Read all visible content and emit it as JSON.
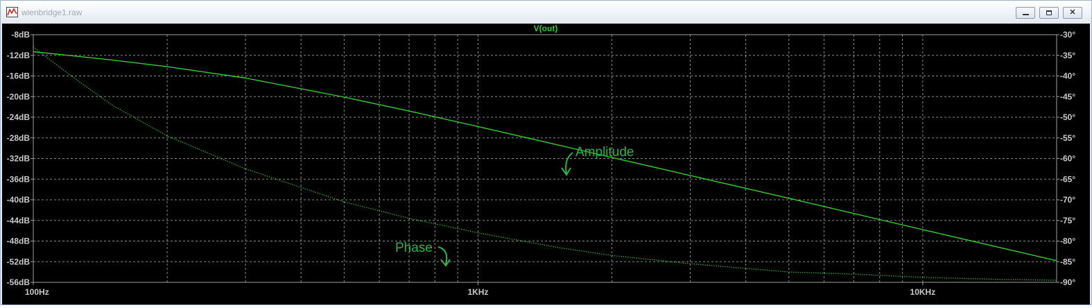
{
  "window": {
    "title": "wienbridge1.raw"
  },
  "colors": {
    "trace": "#33cc33",
    "annotation": "#2db34a",
    "grid": "#8a8a8a",
    "axis_text": "#c8c8c8",
    "background": "#000000"
  },
  "chart_data": {
    "type": "line",
    "title": "V(out)",
    "x_scale": "log",
    "xlim": [
      100,
      20000
    ],
    "x_ticks": [
      100,
      1000,
      10000
    ],
    "x_tick_labels": [
      "100Hz",
      "1KHz",
      "10KHz"
    ],
    "y_left": {
      "lim": [
        -56,
        -8
      ],
      "ticks": [
        -8,
        -12,
        -16,
        -20,
        -24,
        -28,
        -32,
        -36,
        -40,
        -44,
        -48,
        -52,
        -56
      ],
      "tick_labels": [
        "-8dB",
        "-12dB",
        "-16dB",
        "-20dB",
        "-24dB",
        "-28dB",
        "-32dB",
        "-36dB",
        "-40dB",
        "-44dB",
        "-48dB",
        "-52dB",
        "-56dB"
      ]
    },
    "y_right": {
      "lim": [
        -90,
        -30
      ],
      "ticks": [
        -30,
        -35,
        -40,
        -45,
        -50,
        -55,
        -60,
        -65,
        -70,
        -75,
        -80,
        -85,
        -90
      ],
      "tick_labels": [
        "-30°",
        "-35°",
        "-40°",
        "-45°",
        "-50°",
        "-55°",
        "-60°",
        "-65°",
        "-70°",
        "-75°",
        "-80°",
        "-85°",
        "-90°"
      ]
    },
    "grid": true,
    "series": [
      {
        "name": "Amplitude",
        "style": "solid",
        "axis": "left",
        "x": [
          100,
          150,
          200,
          300,
          500,
          700,
          1000,
          2000,
          5000,
          10000,
          20000
        ],
        "y": [
          -11.3,
          -12.9,
          -14.2,
          -16.4,
          -20.1,
          -22.8,
          -25.8,
          -31.8,
          -39.7,
          -45.8,
          -51.8
        ]
      },
      {
        "name": "Phase",
        "style": "dotted",
        "axis": "right",
        "x": [
          100,
          120,
          150,
          200,
          300,
          500,
          700,
          1000,
          1500,
          2000,
          3000,
          5000,
          7000,
          10000,
          15000,
          20000
        ],
        "y": [
          -33,
          -39.5,
          -47,
          -54.5,
          -62.5,
          -70.5,
          -74.5,
          -78,
          -81.5,
          -83.5,
          -85.5,
          -87.5,
          -88,
          -88.8,
          -89.3,
          -89.5
        ]
      }
    ],
    "annotations": [
      {
        "text": "Amplitude"
      },
      {
        "text": "Phase"
      }
    ]
  }
}
